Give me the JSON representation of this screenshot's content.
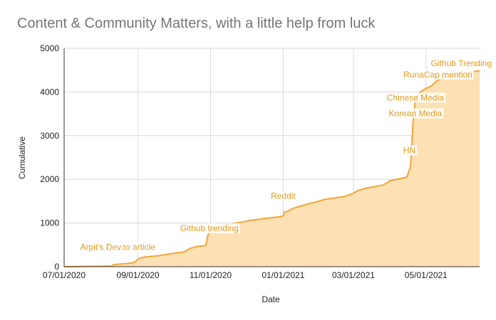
{
  "chart_data": {
    "type": "area",
    "title": "Content & Community Matters, with a little help from luck",
    "xlabel": "Date",
    "ylabel": "Cumulative",
    "ylim": [
      0,
      5000
    ],
    "xlim": [
      "2020-07-01",
      "2021-06-15"
    ],
    "grid": true,
    "y_ticks": [
      0,
      1000,
      2000,
      3000,
      4000,
      5000
    ],
    "x_ticks": [
      {
        "date": "2020-07-01",
        "label": "07/01/2020"
      },
      {
        "date": "2020-09-01",
        "label": "09/01/2020"
      },
      {
        "date": "2020-11-01",
        "label": "11/01/2020"
      },
      {
        "date": "2021-01-01",
        "label": "01/01/2021"
      },
      {
        "date": "2021-03-01",
        "label": "03/01/2021"
      },
      {
        "date": "2021-05-01",
        "label": "05/01/2021"
      }
    ],
    "line_color": "#f1a535",
    "fill_color": "#fde0b4",
    "label_color": "#e39a1c",
    "series": [
      {
        "points": [
          [
            "2020-07-01",
            0
          ],
          [
            "2020-07-15",
            5
          ],
          [
            "2020-08-01",
            10
          ],
          [
            "2020-08-10",
            15
          ],
          [
            "2020-08-12",
            50
          ],
          [
            "2020-08-20",
            65
          ],
          [
            "2020-08-26",
            80
          ],
          [
            "2020-08-29",
            100
          ],
          [
            "2020-09-01",
            170
          ],
          [
            "2020-09-04",
            210
          ],
          [
            "2020-09-10",
            230
          ],
          [
            "2020-09-18",
            250
          ],
          [
            "2020-09-25",
            280
          ],
          [
            "2020-10-04",
            320
          ],
          [
            "2020-10-10",
            340
          ],
          [
            "2020-10-15",
            420
          ],
          [
            "2020-10-20",
            460
          ],
          [
            "2020-10-24",
            470
          ],
          [
            "2020-10-28",
            490
          ],
          [
            "2020-10-30",
            750
          ],
          [
            "2020-11-02",
            850
          ],
          [
            "2020-11-12",
            950
          ],
          [
            "2020-11-25",
            1010
          ],
          [
            "2020-12-05",
            1060
          ],
          [
            "2020-12-15",
            1100
          ],
          [
            "2020-12-28",
            1140
          ],
          [
            "2021-01-01",
            1160
          ],
          [
            "2021-01-02",
            1250
          ],
          [
            "2021-01-05",
            1270
          ],
          [
            "2021-01-08",
            1320
          ],
          [
            "2021-01-12",
            1360
          ],
          [
            "2021-01-20",
            1420
          ],
          [
            "2021-01-28",
            1480
          ],
          [
            "2021-02-05",
            1540
          ],
          [
            "2021-02-12",
            1570
          ],
          [
            "2021-02-22",
            1610
          ],
          [
            "2021-03-01",
            1680
          ],
          [
            "2021-03-05",
            1750
          ],
          [
            "2021-03-12",
            1800
          ],
          [
            "2021-03-20",
            1840
          ],
          [
            "2021-03-26",
            1870
          ],
          [
            "2021-04-01",
            1970
          ],
          [
            "2021-04-08",
            2010
          ],
          [
            "2021-04-15",
            2050
          ],
          [
            "2021-04-18",
            2300
          ],
          [
            "2021-04-20",
            3300
          ],
          [
            "2021-04-22",
            3820
          ],
          [
            "2021-04-26",
            4000
          ],
          [
            "2021-05-01",
            4080
          ],
          [
            "2021-05-06",
            4150
          ],
          [
            "2021-05-10",
            4260
          ],
          [
            "2021-05-15",
            4320
          ],
          [
            "2021-05-22",
            4370
          ],
          [
            "2021-06-01",
            4420
          ],
          [
            "2021-06-08",
            4460
          ],
          [
            "2021-06-15",
            4490
          ]
        ]
      }
    ],
    "annotations": [
      {
        "text": "Arpit's Dev.to article",
        "date": "2020-08-15",
        "value": 450
      },
      {
        "text": "Github trending",
        "date": "2020-10-31",
        "value": 880
      },
      {
        "text": "Reddit",
        "date": "2021-01-01",
        "value": 1620
      },
      {
        "text": "HN",
        "date": "2021-04-17",
        "value": 2660
      },
      {
        "text": "Korean Media",
        "date": "2021-04-22",
        "value": 3510
      },
      {
        "text": "Chinese Media",
        "date": "2021-04-22",
        "value": 3870
      },
      {
        "text": "RunaCap mention",
        "date": "2021-05-11",
        "value": 4400
      },
      {
        "text": "Github Trending",
        "date": "2021-06-01",
        "value": 4660
      }
    ]
  }
}
